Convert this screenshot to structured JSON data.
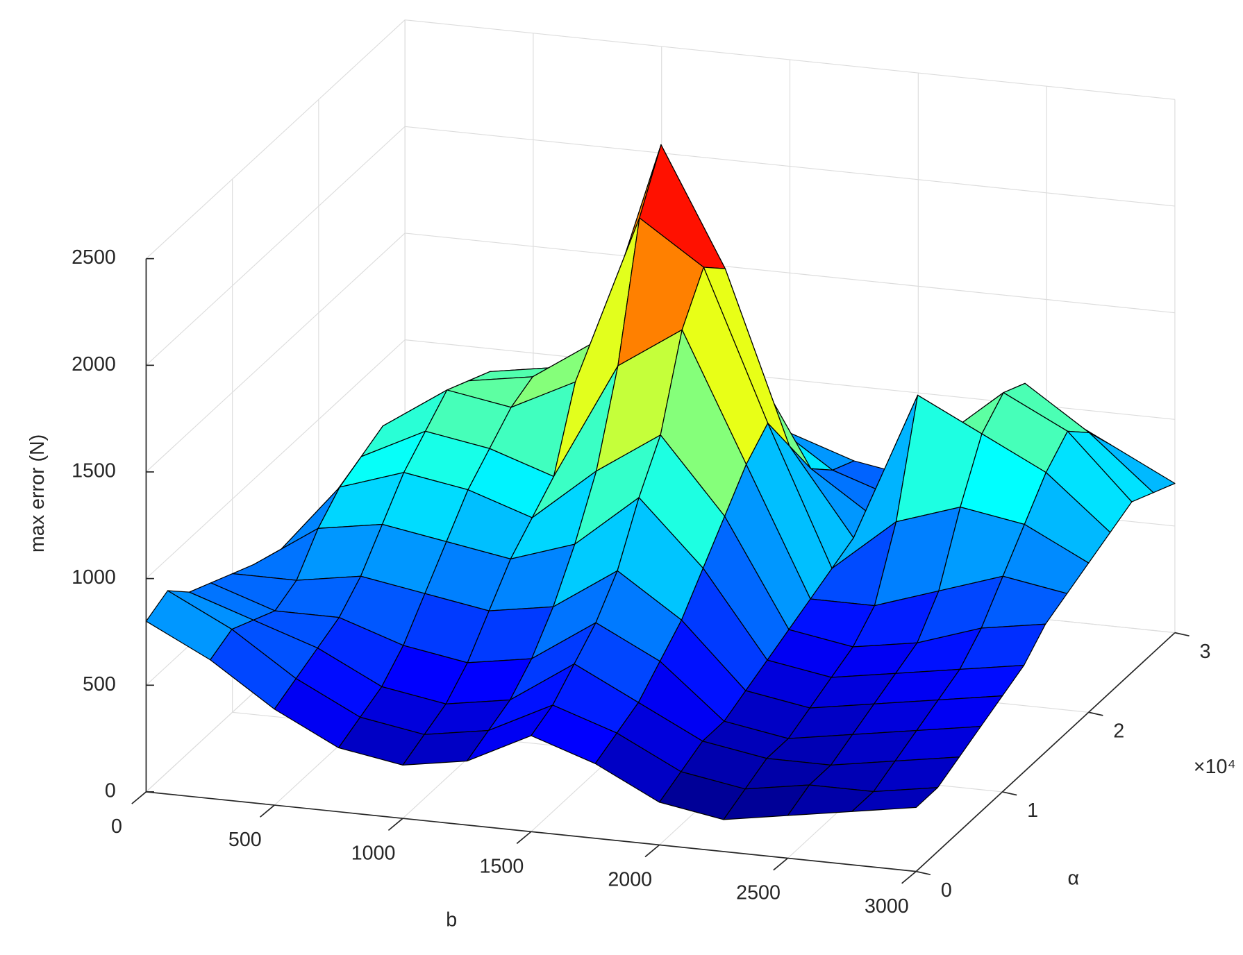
{
  "chart_data": {
    "type": "surface",
    "xlabel": "b",
    "ylabel": "α",
    "zlabel": "max error (N)",
    "y_multiplier_label": "×10⁴",
    "colormap": "jet",
    "grid": true,
    "edge_color": "#000000",
    "xlim": [
      0,
      3000
    ],
    "ylim": [
      0,
      30000
    ],
    "zlim": [
      0,
      2500
    ],
    "xticks": [
      0,
      500,
      1000,
      1500,
      2000,
      2500,
      3000
    ],
    "yticks": [
      0,
      {
        "value": 10000,
        "label": "1"
      },
      {
        "value": 20000,
        "label": "2"
      },
      {
        "value": 30000,
        "label": "3"
      }
    ],
    "zticks": [
      0,
      500,
      1000,
      1500,
      2000,
      2500
    ],
    "x": [
      0,
      250,
      500,
      750,
      1000,
      1250,
      1500,
      1750,
      2000,
      2250,
      2500,
      2750,
      3000
    ],
    "y": [
      0,
      2500,
      5000,
      7500,
      10000,
      12500,
      15000,
      17500,
      20000,
      22500,
      25000,
      27500,
      30000
    ],
    "z": [
      [
        800,
        650,
        450,
        300,
        250,
        300,
        450,
        350,
        200,
        150,
        200,
        250,
        300
      ],
      [
        850,
        700,
        500,
        350,
        300,
        350,
        500,
        400,
        250,
        200,
        250,
        250,
        300
      ],
      [
        750,
        650,
        550,
        400,
        350,
        400,
        600,
        450,
        300,
        250,
        250,
        300,
        350
      ],
      [
        700,
        600,
        600,
        500,
        450,
        500,
        700,
        550,
        300,
        250,
        300,
        350,
        400
      ],
      [
        650,
        650,
        700,
        650,
        600,
        650,
        850,
        650,
        350,
        300,
        350,
        400,
        450
      ],
      [
        600,
        800,
        850,
        800,
        750,
        850,
        1100,
        800,
        400,
        350,
        400,
        450,
        500
      ],
      [
        550,
        900,
        1000,
        950,
        850,
        1100,
        1300,
        950,
        450,
        400,
        450,
        550,
        600
      ],
      [
        500,
        950,
        1100,
        1050,
        950,
        1500,
        1700,
        1100,
        500,
        500,
        600,
        700,
        650
      ],
      [
        500,
        1000,
        1200,
        1150,
        1300,
        2100,
        1900,
        1200,
        550,
        800,
        900,
        850,
        700
      ],
      [
        450,
        950,
        1150,
        1200,
        1400,
        2350,
        1800,
        1000,
        600,
        1300,
        1150,
        1000,
        750
      ],
      [
        400,
        900,
        1100,
        1150,
        1200,
        1700,
        1300,
        800,
        600,
        1000,
        1250,
        1100,
        800
      ],
      [
        400,
        850,
        1000,
        1050,
        1000,
        1200,
        900,
        700,
        600,
        900,
        1200,
        1000,
        750
      ],
      [
        350,
        700,
        850,
        900,
        850,
        900,
        750,
        650,
        600,
        800,
        1000,
        850,
        700
      ]
    ]
  }
}
